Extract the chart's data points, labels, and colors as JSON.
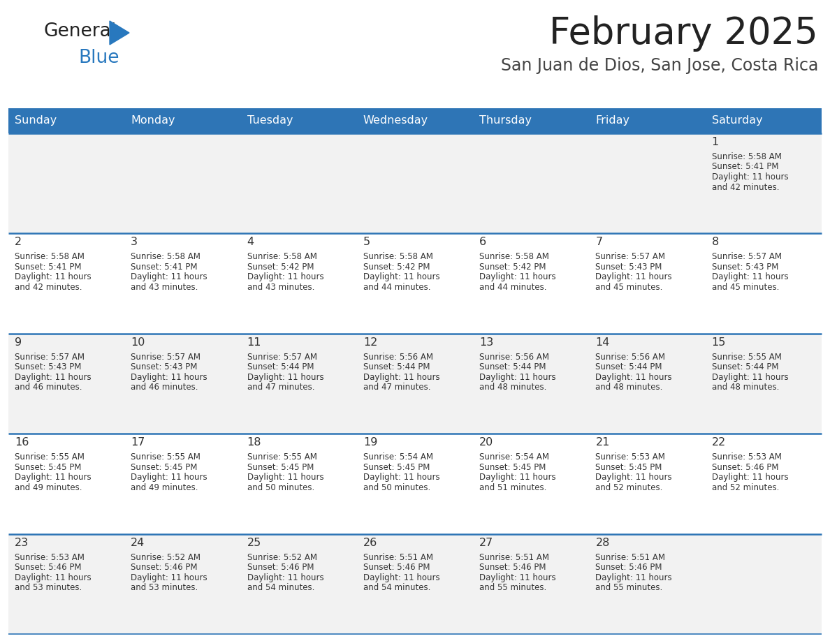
{
  "title": "February 2025",
  "subtitle": "San Juan de Dios, San Jose, Costa Rica",
  "header_bg": "#2E75B6",
  "header_text_color": "#FFFFFF",
  "cell_bg_row0": "#F2F2F2",
  "cell_bg_row1": "#FFFFFF",
  "cell_bg_row2": "#F2F2F2",
  "cell_bg_row3": "#FFFFFF",
  "cell_bg_row4": "#F2F2F2",
  "border_color": "#2E75B6",
  "text_color": "#333333",
  "day_headers": [
    "Sunday",
    "Monday",
    "Tuesday",
    "Wednesday",
    "Thursday",
    "Friday",
    "Saturday"
  ],
  "title_color": "#222222",
  "subtitle_color": "#444444",
  "logo_general_color": "#222222",
  "logo_blue_color": "#2878BE",
  "days": [
    {
      "date": 1,
      "col": 6,
      "row": 0,
      "sunrise": "5:58 AM",
      "sunset": "5:41 PM",
      "daylight_hours": 11,
      "daylight_min": "42"
    },
    {
      "date": 2,
      "col": 0,
      "row": 1,
      "sunrise": "5:58 AM",
      "sunset": "5:41 PM",
      "daylight_hours": 11,
      "daylight_min": "42"
    },
    {
      "date": 3,
      "col": 1,
      "row": 1,
      "sunrise": "5:58 AM",
      "sunset": "5:41 PM",
      "daylight_hours": 11,
      "daylight_min": "43"
    },
    {
      "date": 4,
      "col": 2,
      "row": 1,
      "sunrise": "5:58 AM",
      "sunset": "5:42 PM",
      "daylight_hours": 11,
      "daylight_min": "43"
    },
    {
      "date": 5,
      "col": 3,
      "row": 1,
      "sunrise": "5:58 AM",
      "sunset": "5:42 PM",
      "daylight_hours": 11,
      "daylight_min": "44"
    },
    {
      "date": 6,
      "col": 4,
      "row": 1,
      "sunrise": "5:58 AM",
      "sunset": "5:42 PM",
      "daylight_hours": 11,
      "daylight_min": "44"
    },
    {
      "date": 7,
      "col": 5,
      "row": 1,
      "sunrise": "5:57 AM",
      "sunset": "5:43 PM",
      "daylight_hours": 11,
      "daylight_min": "45"
    },
    {
      "date": 8,
      "col": 6,
      "row": 1,
      "sunrise": "5:57 AM",
      "sunset": "5:43 PM",
      "daylight_hours": 11,
      "daylight_min": "45"
    },
    {
      "date": 9,
      "col": 0,
      "row": 2,
      "sunrise": "5:57 AM",
      "sunset": "5:43 PM",
      "daylight_hours": 11,
      "daylight_min": "46"
    },
    {
      "date": 10,
      "col": 1,
      "row": 2,
      "sunrise": "5:57 AM",
      "sunset": "5:43 PM",
      "daylight_hours": 11,
      "daylight_min": "46"
    },
    {
      "date": 11,
      "col": 2,
      "row": 2,
      "sunrise": "5:57 AM",
      "sunset": "5:44 PM",
      "daylight_hours": 11,
      "daylight_min": "47"
    },
    {
      "date": 12,
      "col": 3,
      "row": 2,
      "sunrise": "5:56 AM",
      "sunset": "5:44 PM",
      "daylight_hours": 11,
      "daylight_min": "47"
    },
    {
      "date": 13,
      "col": 4,
      "row": 2,
      "sunrise": "5:56 AM",
      "sunset": "5:44 PM",
      "daylight_hours": 11,
      "daylight_min": "48"
    },
    {
      "date": 14,
      "col": 5,
      "row": 2,
      "sunrise": "5:56 AM",
      "sunset": "5:44 PM",
      "daylight_hours": 11,
      "daylight_min": "48"
    },
    {
      "date": 15,
      "col": 6,
      "row": 2,
      "sunrise": "5:55 AM",
      "sunset": "5:44 PM",
      "daylight_hours": 11,
      "daylight_min": "48"
    },
    {
      "date": 16,
      "col": 0,
      "row": 3,
      "sunrise": "5:55 AM",
      "sunset": "5:45 PM",
      "daylight_hours": 11,
      "daylight_min": "49"
    },
    {
      "date": 17,
      "col": 1,
      "row": 3,
      "sunrise": "5:55 AM",
      "sunset": "5:45 PM",
      "daylight_hours": 11,
      "daylight_min": "49"
    },
    {
      "date": 18,
      "col": 2,
      "row": 3,
      "sunrise": "5:55 AM",
      "sunset": "5:45 PM",
      "daylight_hours": 11,
      "daylight_min": "50"
    },
    {
      "date": 19,
      "col": 3,
      "row": 3,
      "sunrise": "5:54 AM",
      "sunset": "5:45 PM",
      "daylight_hours": 11,
      "daylight_min": "50"
    },
    {
      "date": 20,
      "col": 4,
      "row": 3,
      "sunrise": "5:54 AM",
      "sunset": "5:45 PM",
      "daylight_hours": 11,
      "daylight_min": "51"
    },
    {
      "date": 21,
      "col": 5,
      "row": 3,
      "sunrise": "5:53 AM",
      "sunset": "5:45 PM",
      "daylight_hours": 11,
      "daylight_min": "52"
    },
    {
      "date": 22,
      "col": 6,
      "row": 3,
      "sunrise": "5:53 AM",
      "sunset": "5:46 PM",
      "daylight_hours": 11,
      "daylight_min": "52"
    },
    {
      "date": 23,
      "col": 0,
      "row": 4,
      "sunrise": "5:53 AM",
      "sunset": "5:46 PM",
      "daylight_hours": 11,
      "daylight_min": "53"
    },
    {
      "date": 24,
      "col": 1,
      "row": 4,
      "sunrise": "5:52 AM",
      "sunset": "5:46 PM",
      "daylight_hours": 11,
      "daylight_min": "53"
    },
    {
      "date": 25,
      "col": 2,
      "row": 4,
      "sunrise": "5:52 AM",
      "sunset": "5:46 PM",
      "daylight_hours": 11,
      "daylight_min": "54"
    },
    {
      "date": 26,
      "col": 3,
      "row": 4,
      "sunrise": "5:51 AM",
      "sunset": "5:46 PM",
      "daylight_hours": 11,
      "daylight_min": "54"
    },
    {
      "date": 27,
      "col": 4,
      "row": 4,
      "sunrise": "5:51 AM",
      "sunset": "5:46 PM",
      "daylight_hours": 11,
      "daylight_min": "55"
    },
    {
      "date": 28,
      "col": 5,
      "row": 4,
      "sunrise": "5:51 AM",
      "sunset": "5:46 PM",
      "daylight_hours": 11,
      "daylight_min": "55"
    }
  ]
}
